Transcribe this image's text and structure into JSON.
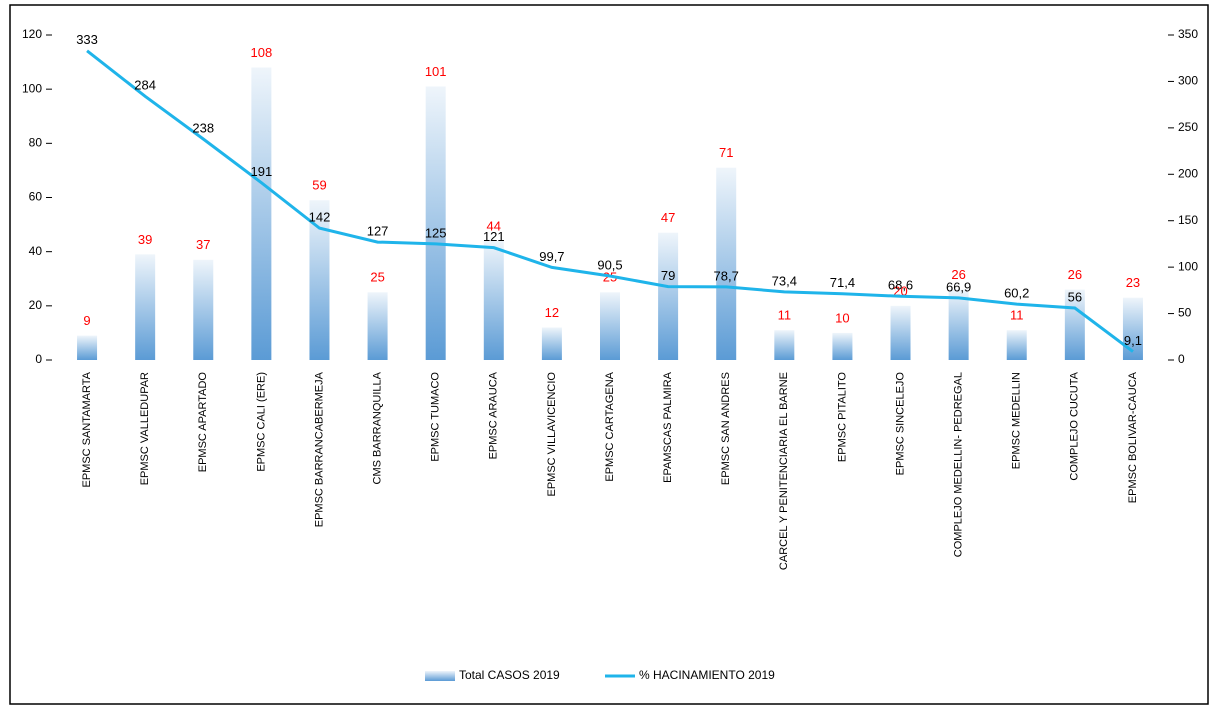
{
  "chart_data": {
    "type": "bar-line",
    "categories": [
      "EPMSC SANTAMARTA",
      "EPMSC VALLEDUPAR",
      "EPMSC APARTADO",
      "EPMSC CALI (ERE)",
      "EPMSC BARRANCABERMEJA",
      "CMS BARRANQUILLA",
      "EPMSC TUMACO",
      "EPMSC ARAUCA",
      "EPMSC VILLAVICENCIO",
      "EPMSC CARTAGENA",
      "EPAMSCAS PALMIRA",
      "EPMSC SAN ANDRES",
      "CARCEL Y PENITENCIARIA EL BARNE",
      "EPMSC PITALITO",
      "EPMSC SINCELEJO",
      "COMPLEJO MEDELLIN- PEDREGAL",
      "EPMSC MEDELLIN",
      "COMPLEJO CUCUTA",
      "EPMSC BOLIVAR-CAUCA"
    ],
    "series": [
      {
        "name": "Total CASOS 2019",
        "type": "bar",
        "color": "#5b9bd5",
        "label_color": "#ff0000",
        "values": [
          9,
          39,
          37,
          108,
          59,
          25,
          101,
          44,
          12,
          25,
          47,
          71,
          11,
          10,
          20,
          26,
          11,
          26,
          23
        ]
      },
      {
        "name": "% HACINAMIENTO 2019",
        "type": "line",
        "axis": "y2",
        "color": "#1fb4ea",
        "label_color": "#000000",
        "values": [
          333,
          284,
          238,
          191,
          142,
          127,
          125,
          121,
          99.7,
          90.5,
          79,
          78.7,
          73.4,
          71.4,
          68.6,
          66.9,
          60.2,
          56,
          9.1
        ],
        "value_labels": [
          "333",
          "284",
          "238",
          "191",
          "142",
          "127",
          "125",
          "121",
          "99,7",
          "90,5",
          "79",
          "78,7",
          "73,4",
          "71,4",
          "68,6",
          "66,9",
          "60,2",
          "56",
          "9,1"
        ]
      }
    ],
    "ylim": [
      0,
      120
    ],
    "yticks": [
      0,
      20,
      40,
      60,
      80,
      100,
      120
    ],
    "y2lim": [
      0,
      350
    ],
    "y2ticks": [
      0,
      50,
      100,
      150,
      200,
      250,
      300,
      350
    ],
    "grid": false,
    "legend": "bottom"
  }
}
